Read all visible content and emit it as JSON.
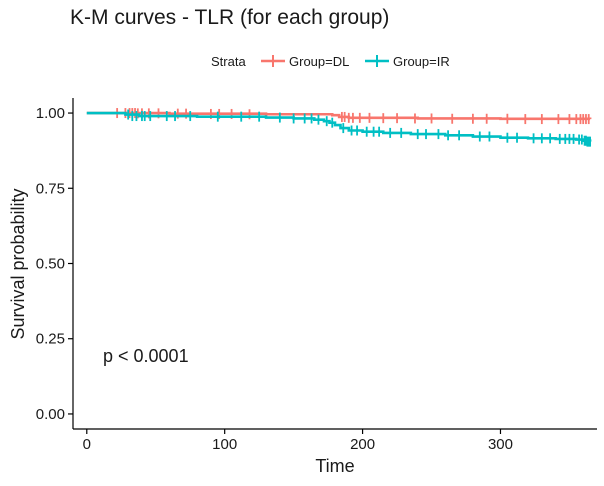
{
  "chart_data": {
    "type": "line",
    "title": "K-M curves - TLR (for each group)",
    "xlabel": "Time",
    "ylabel": "Survival probability",
    "xlim": [
      -10,
      370
    ],
    "ylim": [
      -0.05,
      1.05
    ],
    "x_ticks": [
      0,
      100,
      200,
      300
    ],
    "x_tick_labels": [
      "0",
      "100",
      "200",
      "300"
    ],
    "y_ticks": [
      0.0,
      0.25,
      0.5,
      0.75,
      1.0
    ],
    "y_tick_labels": [
      "0.00",
      "0.25",
      "0.50",
      "0.75",
      "1.00"
    ],
    "grid": false,
    "legend": {
      "title": "Strata",
      "position": "top",
      "entries": [
        "Group=DL",
        "Group=IR"
      ]
    },
    "annotation": "p < 0.0001",
    "series": [
      {
        "name": "Group=DL",
        "color": "#f8766d",
        "steps": [
          [
            0,
            1.0
          ],
          [
            60,
            0.998
          ],
          [
            130,
            0.996
          ],
          [
            178,
            0.993
          ],
          [
            183,
            0.987
          ],
          [
            190,
            0.984
          ],
          [
            240,
            0.982
          ],
          [
            300,
            0.981
          ],
          [
            365,
            0.98
          ]
        ],
        "censored": [
          [
            22,
            1.0
          ],
          [
            28,
            1.0
          ],
          [
            31,
            1.0
          ],
          [
            33,
            1.0
          ],
          [
            35,
            1.0
          ],
          [
            37,
            0.999
          ],
          [
            40,
            0.999
          ],
          [
            45,
            0.999
          ],
          [
            52,
            0.999
          ],
          [
            66,
            0.998
          ],
          [
            72,
            0.998
          ],
          [
            90,
            0.997
          ],
          [
            96,
            0.997
          ],
          [
            105,
            0.997
          ],
          [
            118,
            0.996
          ],
          [
            185,
            0.987
          ],
          [
            187,
            0.987
          ],
          [
            190,
            0.984
          ],
          [
            193,
            0.984
          ],
          [
            198,
            0.984
          ],
          [
            205,
            0.984
          ],
          [
            215,
            0.983
          ],
          [
            225,
            0.983
          ],
          [
            238,
            0.982
          ],
          [
            250,
            0.982
          ],
          [
            265,
            0.981
          ],
          [
            280,
            0.981
          ],
          [
            290,
            0.981
          ],
          [
            305,
            0.981
          ],
          [
            318,
            0.98
          ],
          [
            330,
            0.98
          ],
          [
            342,
            0.98
          ],
          [
            350,
            0.98
          ],
          [
            355,
            0.98
          ],
          [
            358,
            0.98
          ],
          [
            360,
            0.98
          ],
          [
            362,
            0.98
          ],
          [
            364,
            0.98
          ]
        ]
      },
      {
        "name": "Group=IR",
        "color": "#00bfc4",
        "steps": [
          [
            0,
            1.0
          ],
          [
            28,
            0.995
          ],
          [
            38,
            0.99
          ],
          [
            80,
            0.988
          ],
          [
            130,
            0.985
          ],
          [
            150,
            0.982
          ],
          [
            165,
            0.978
          ],
          [
            172,
            0.973
          ],
          [
            176,
            0.968
          ],
          [
            180,
            0.96
          ],
          [
            184,
            0.95
          ],
          [
            190,
            0.942
          ],
          [
            200,
            0.938
          ],
          [
            215,
            0.934
          ],
          [
            235,
            0.93
          ],
          [
            260,
            0.926
          ],
          [
            280,
            0.922
          ],
          [
            300,
            0.918
          ],
          [
            320,
            0.916
          ],
          [
            340,
            0.914
          ],
          [
            355,
            0.912
          ],
          [
            360,
            0.908
          ],
          [
            365,
            0.905
          ]
        ],
        "censored": [
          [
            30,
            0.995
          ],
          [
            33,
            0.99
          ],
          [
            36,
            0.99
          ],
          [
            40,
            0.99
          ],
          [
            42,
            0.99
          ],
          [
            46,
            0.99
          ],
          [
            58,
            0.99
          ],
          [
            64,
            0.99
          ],
          [
            75,
            0.99
          ],
          [
            95,
            0.988
          ],
          [
            112,
            0.988
          ],
          [
            125,
            0.988
          ],
          [
            140,
            0.985
          ],
          [
            150,
            0.982
          ],
          [
            158,
            0.982
          ],
          [
            163,
            0.982
          ],
          [
            168,
            0.978
          ],
          [
            174,
            0.973
          ],
          [
            178,
            0.968
          ],
          [
            186,
            0.95
          ],
          [
            192,
            0.942
          ],
          [
            196,
            0.942
          ],
          [
            203,
            0.938
          ],
          [
            208,
            0.938
          ],
          [
            212,
            0.938
          ],
          [
            220,
            0.934
          ],
          [
            228,
            0.934
          ],
          [
            240,
            0.93
          ],
          [
            246,
            0.93
          ],
          [
            255,
            0.93
          ],
          [
            262,
            0.926
          ],
          [
            270,
            0.926
          ],
          [
            285,
            0.922
          ],
          [
            292,
            0.922
          ],
          [
            305,
            0.918
          ],
          [
            312,
            0.918
          ],
          [
            324,
            0.916
          ],
          [
            330,
            0.916
          ],
          [
            336,
            0.916
          ],
          [
            343,
            0.914
          ],
          [
            347,
            0.914
          ],
          [
            350,
            0.914
          ],
          [
            353,
            0.914
          ],
          [
            357,
            0.912
          ],
          [
            359,
            0.912
          ],
          [
            361,
            0.908
          ],
          [
            362,
            0.908
          ],
          [
            363,
            0.905
          ],
          [
            364,
            0.905
          ],
          [
            365,
            0.905
          ]
        ]
      }
    ]
  }
}
